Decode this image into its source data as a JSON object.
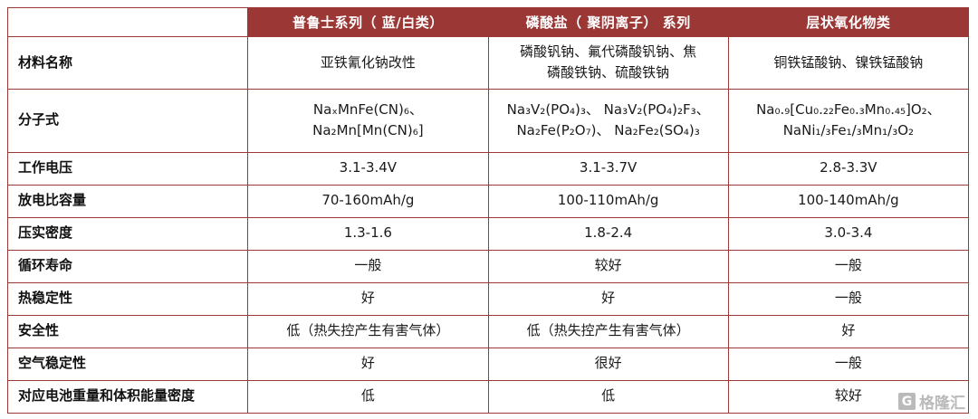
{
  "chart_data": {
    "type": "table",
    "title": "",
    "columns": [
      "",
      "普鲁士系列（ 蓝/白类）",
      "磷酸盐（ 聚阴离子） 系列",
      "层状氧化物类"
    ],
    "rows": [
      {
        "label": "材料名称",
        "cells": [
          [
            "亚铁氰化钠改性"
          ],
          [
            "磷酸钒钠、氟代磷酸钒钠、焦",
            "磷酸铁钠、硫酸铁钠"
          ],
          [
            "铜铁锰酸钠、镍铁锰酸钠"
          ]
        ]
      },
      {
        "label": "分子式",
        "cells": [
          [
            "NaₓMnFe(CN)₆、",
            "Na₂Mn[Mn(CN)₆]"
          ],
          [
            "Na₃V₂(PO₄)₃、 Na₃V₂(PO₄)₂F₃、",
            "Na₂Fe(P₂O₇)、 Na₂Fe₂(SO₄)₃"
          ],
          [
            "Na₀.₉[Cu₀.₂₂Fe₀.₃Mn₀.₄₅]O₂、",
            "NaNi₁/₃Fe₁/₃Mn₁/₃O₂"
          ]
        ]
      },
      {
        "label": "工作电压",
        "cells": [
          [
            "3.1-3.4V"
          ],
          [
            "3.1-3.7V"
          ],
          [
            "2.8-3.3V"
          ]
        ]
      },
      {
        "label": "放电比容量",
        "cells": [
          [
            "70-160mAh/g"
          ],
          [
            "100-110mAh/g"
          ],
          [
            "100-140mAh/g"
          ]
        ]
      },
      {
        "label": "压实密度",
        "cells": [
          [
            "1.3-1.6"
          ],
          [
            "1.8-2.4"
          ],
          [
            "3.0-3.4"
          ]
        ]
      },
      {
        "label": "循环寿命",
        "cells": [
          [
            "一般"
          ],
          [
            "较好"
          ],
          [
            "一般"
          ]
        ]
      },
      {
        "label": "热稳定性",
        "cells": [
          [
            "好"
          ],
          [
            "好"
          ],
          [
            "一般"
          ]
        ]
      },
      {
        "label": "安全性",
        "cells": [
          [
            "低（热失控产生有害气体）"
          ],
          [
            "低（热失控产生有害气体）"
          ],
          [
            "好"
          ]
        ]
      },
      {
        "label": "空气稳定性",
        "cells": [
          [
            "好"
          ],
          [
            "很好"
          ],
          [
            "一般"
          ]
        ]
      },
      {
        "label": "对应电池重量和体积能量密度",
        "cells": [
          [
            "低"
          ],
          [
            "低"
          ],
          [
            "较好"
          ]
        ]
      }
    ]
  },
  "colors": {
    "header_bg": "#9b3836",
    "header_text": "#ffffff",
    "border": "#9b3836",
    "body_text": "#1a1a1a",
    "watermark": "#b3b3b3"
  },
  "watermark": {
    "logo_letter": "G",
    "text": "格隆汇"
  }
}
